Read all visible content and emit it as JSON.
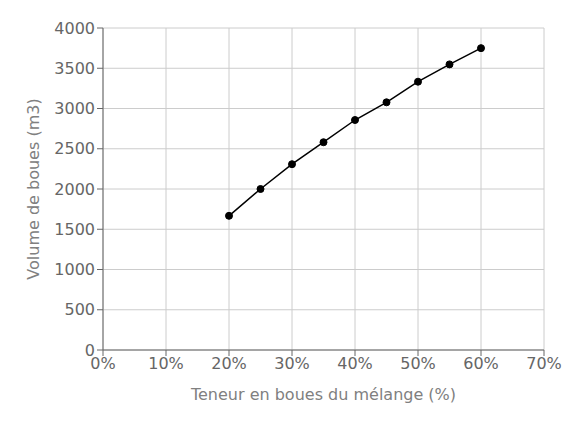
{
  "chart_data": {
    "type": "line",
    "x": [
      0.2,
      0.25,
      0.3,
      0.35,
      0.4,
      0.45,
      0.5,
      0.55,
      0.6
    ],
    "values": [
      1667,
      2000,
      2308,
      2581,
      2857,
      3077,
      3333,
      3548,
      3750
    ],
    "xlabel": "Teneur en boues du mélange (%)",
    "ylabel": "Volume de boues (m3)",
    "xlim": [
      0.0,
      0.7
    ],
    "ylim": [
      0,
      4000
    ],
    "xticks": [
      {
        "value": 0.0,
        "label": "0%"
      },
      {
        "value": 0.1,
        "label": "10%"
      },
      {
        "value": 0.2,
        "label": "20%"
      },
      {
        "value": 0.3,
        "label": "30%"
      },
      {
        "value": 0.4,
        "label": "40%"
      },
      {
        "value": 0.5,
        "label": "50%"
      },
      {
        "value": 0.6,
        "label": "60%"
      },
      {
        "value": 0.7,
        "label": "70%"
      }
    ],
    "yticks": [
      0,
      500,
      1000,
      1500,
      2000,
      2500,
      3000,
      3500,
      4000
    ],
    "color": "#000000",
    "marker": "o",
    "grid": true
  }
}
